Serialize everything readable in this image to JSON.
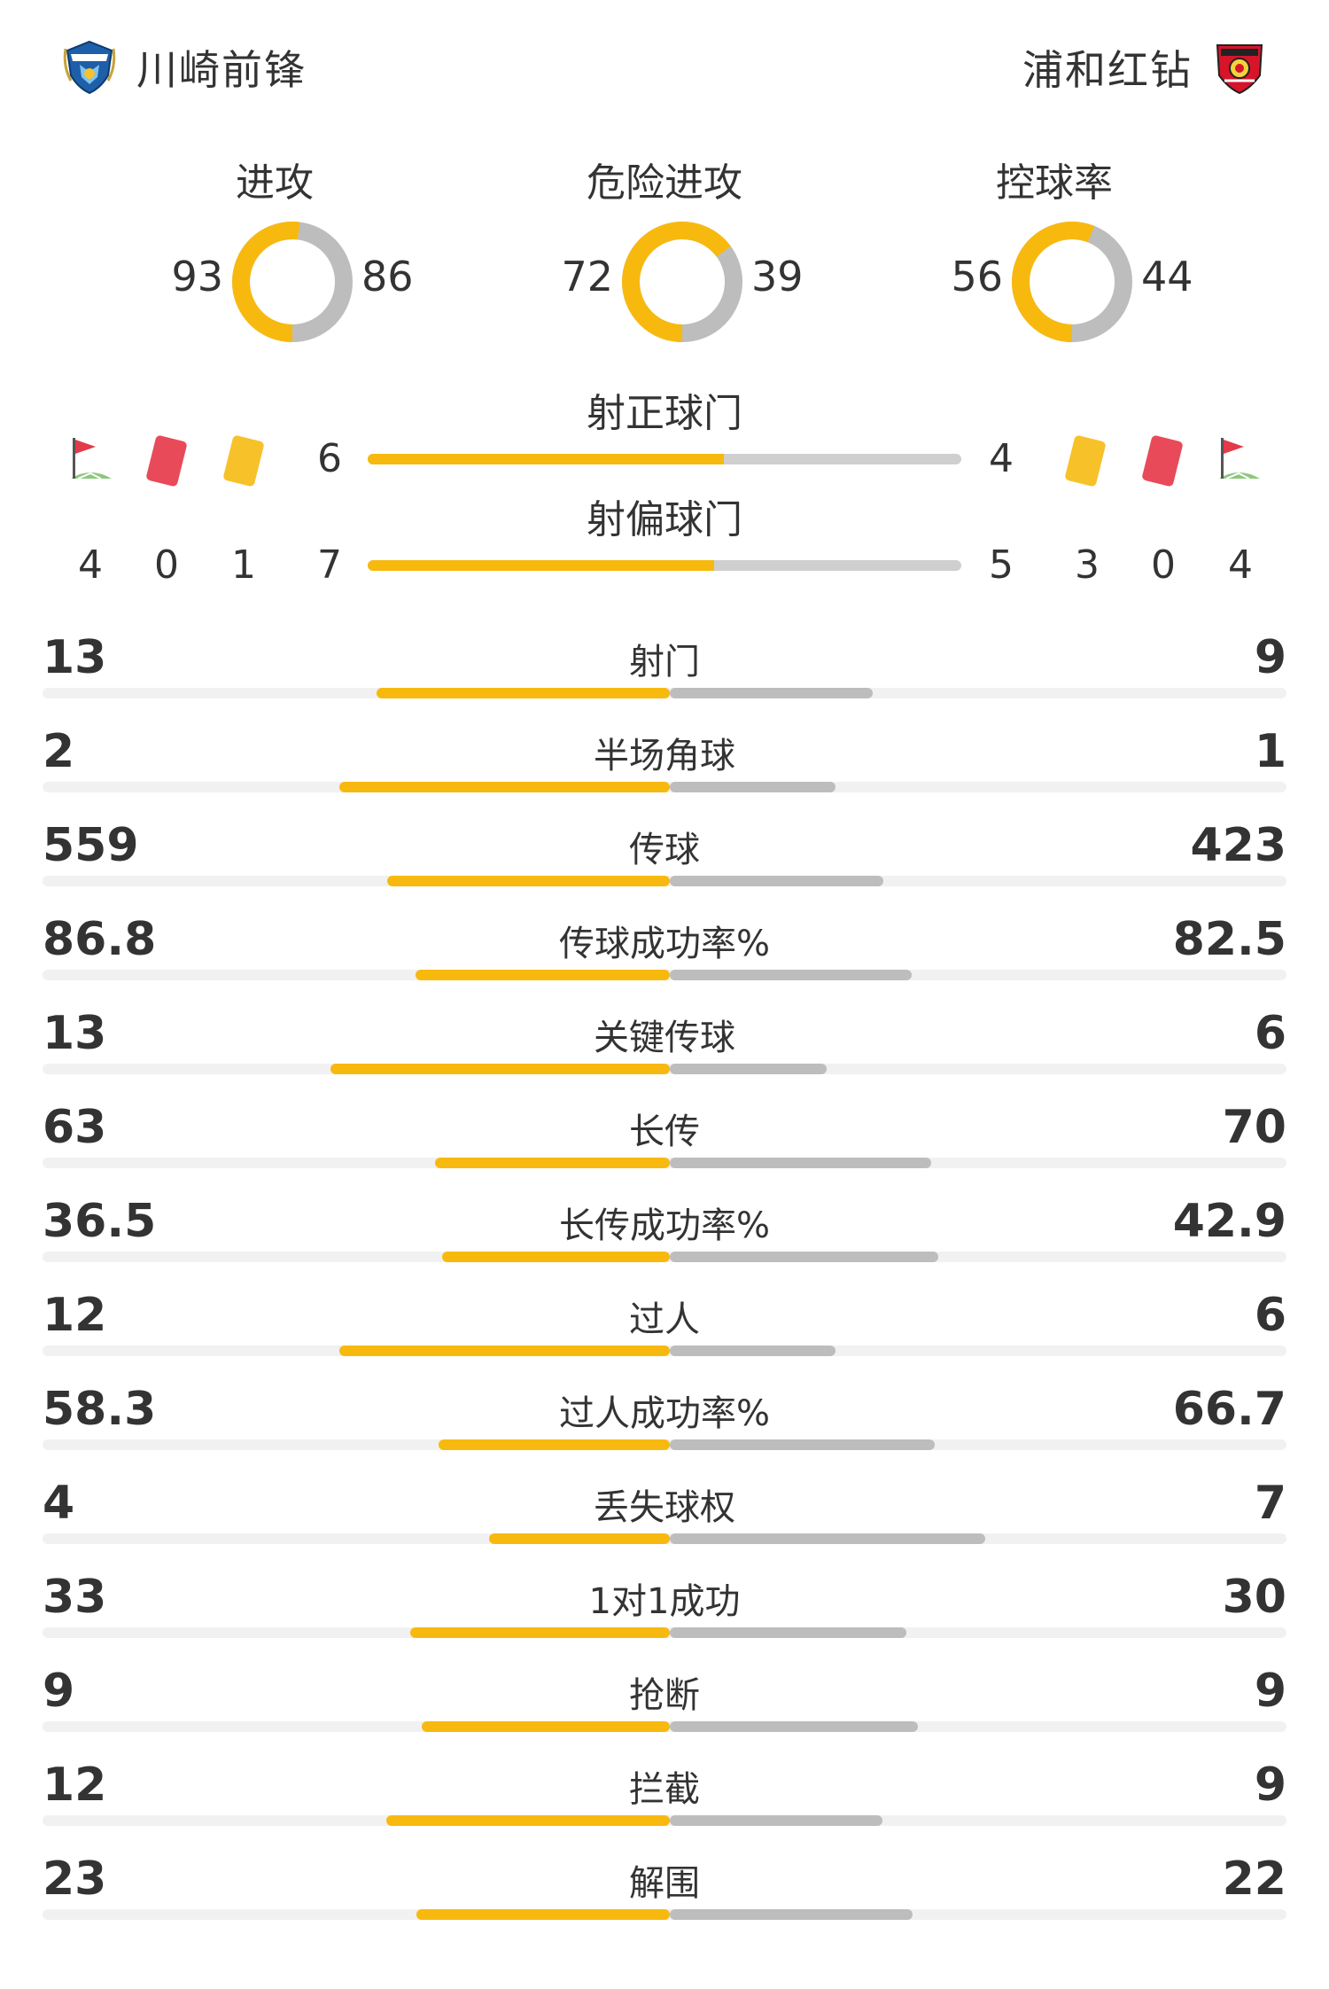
{
  "home": {
    "name": "川崎前锋",
    "logo": "kawasaki-frontale-crest"
  },
  "away": {
    "name": "浦和红钻",
    "logo": "urawa-reds-crest"
  },
  "colors": {
    "home": "#f8b90f",
    "away": "#bdbdbd",
    "track": "#f1f1f1"
  },
  "donuts": [
    {
      "title": "进攻",
      "home": 93,
      "away": 86
    },
    {
      "title": "危险进攻",
      "home": 72,
      "away": 39
    },
    {
      "title": "控球率",
      "home": 56,
      "away": 44
    }
  ],
  "shots": {
    "on_target": {
      "title": "射正球门",
      "home": 6,
      "away": 4
    },
    "off_target": {
      "title": "射偏球门",
      "home": 7,
      "away": 5
    }
  },
  "events": {
    "home": {
      "corners": 4,
      "red_cards": 0,
      "yellow_cards": 1
    },
    "away": {
      "yellow_cards": 3,
      "red_cards": 0,
      "corners": 4
    },
    "icons": [
      "corner-flag-icon",
      "red-card-icon",
      "yellow-card-icon"
    ]
  },
  "stats": [
    {
      "label": "射门",
      "home": "13",
      "away": "9"
    },
    {
      "label": "半场角球",
      "home": "2",
      "away": "1"
    },
    {
      "label": "传球",
      "home": "559",
      "away": "423"
    },
    {
      "label": "传球成功率%",
      "home": "86.8",
      "away": "82.5"
    },
    {
      "label": "关键传球",
      "home": "13",
      "away": "6"
    },
    {
      "label": "长传",
      "home": "63",
      "away": "70"
    },
    {
      "label": "长传成功率%",
      "home": "36.5",
      "away": "42.9"
    },
    {
      "label": "过人",
      "home": "12",
      "away": "6"
    },
    {
      "label": "过人成功率%",
      "home": "58.3",
      "away": "66.7"
    },
    {
      "label": "丢失球权",
      "home": "4",
      "away": "7"
    },
    {
      "label": "1对1成功",
      "home": "33",
      "away": "30"
    },
    {
      "label": "抢断",
      "home": "9",
      "away": "9"
    },
    {
      "label": "拦截",
      "home": "12",
      "away": "9"
    },
    {
      "label": "解围",
      "home": "23",
      "away": "22"
    }
  ]
}
